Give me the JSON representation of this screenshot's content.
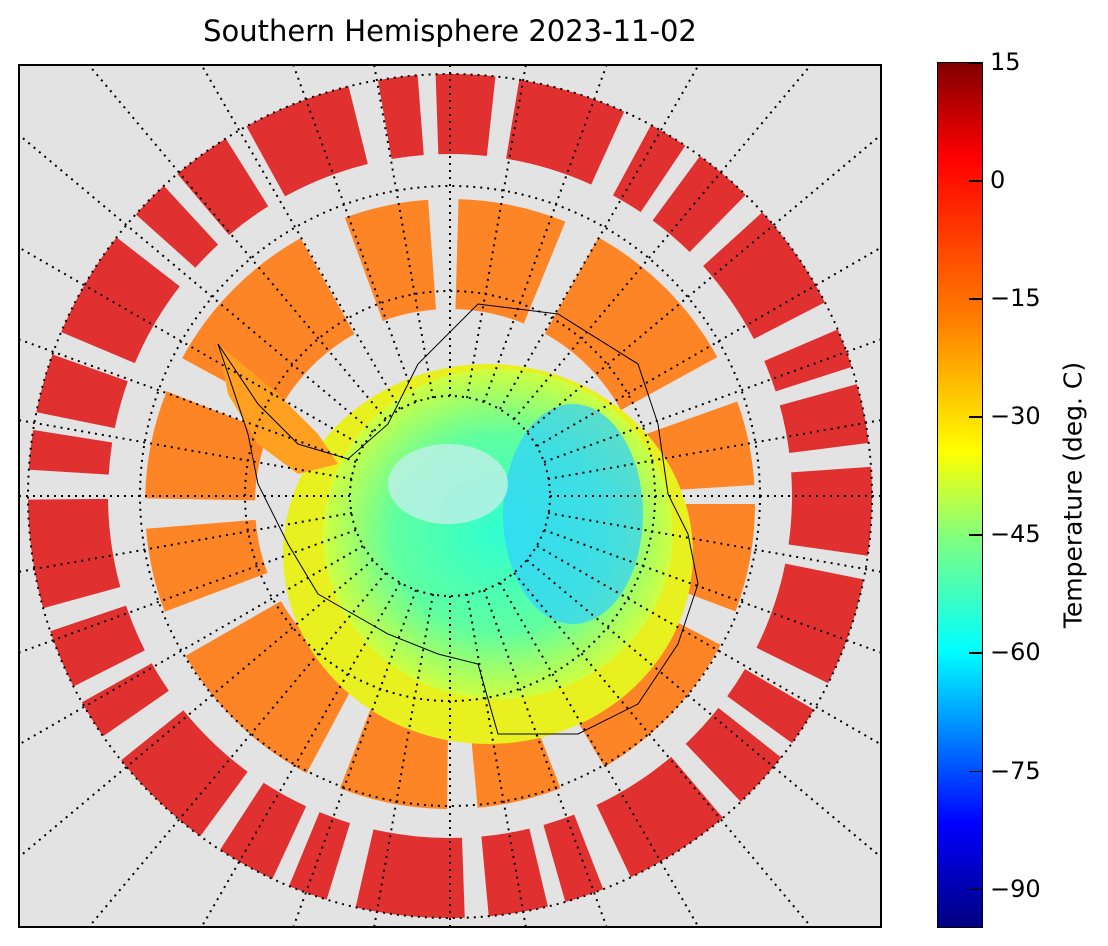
{
  "title": "Southern Hemisphere 2023-11-02",
  "colorbar": {
    "label": "Temperature (deg. C)",
    "range": [
      -95,
      15
    ],
    "ticks": [
      "15",
      "0",
      "−15",
      "−30",
      "−45",
      "−60",
      "−75",
      "−90"
    ],
    "tick_values": [
      15,
      0,
      -15,
      -30,
      -45,
      -60,
      -75,
      -90
    ],
    "colormap": [
      "#000080",
      "#0000ff",
      "#0080ff",
      "#00ffff",
      "#80ff80",
      "#ffff00",
      "#ff8000",
      "#ff0000",
      "#800000"
    ]
  },
  "map": {
    "projection": "south-polar-stereographic",
    "background_color": "#e3e3e3",
    "graticule": "dotted",
    "meridian_spacing_deg": 10,
    "parallels": 4
  },
  "chart_data": {
    "type": "heatmap",
    "title": "Southern Hemisphere 2023-11-02",
    "zlabel": "Temperature (deg. C)",
    "zlim": [
      -95,
      15
    ],
    "regions": [
      {
        "zone": "polar-cap",
        "approx_value": -40
      },
      {
        "zone": "east-antarctica-plateau",
        "approx_value": -55
      },
      {
        "zone": "antarctic-coast",
        "approx_value": -25
      },
      {
        "zone": "southern-ocean-ring",
        "approx_value": -10
      },
      {
        "zone": "outer-ocean",
        "approx_value": 5
      }
    ]
  }
}
